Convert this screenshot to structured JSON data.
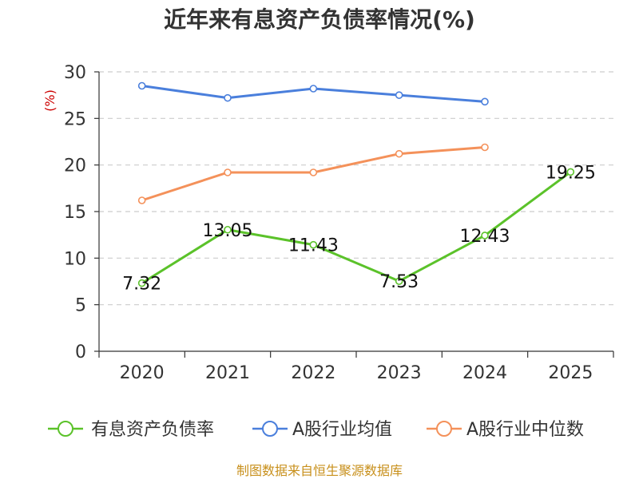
{
  "chart_data": {
    "type": "line",
    "title": "近年来有息资产负债率情况(%)",
    "ylabel": "(%)",
    "xlabel": "",
    "categories": [
      "2020",
      "2021",
      "2022",
      "2023",
      "2024",
      "2025"
    ],
    "ylim": [
      0,
      30
    ],
    "yticks": [
      0,
      5,
      10,
      15,
      20,
      25,
      30
    ],
    "grid": true,
    "legend_position": "bottom",
    "series": [
      {
        "name": "有息资产负债率",
        "color": "#5bc22a",
        "values": [
          7.32,
          13.05,
          11.43,
          7.53,
          12.43,
          19.25
        ],
        "labels": [
          "7.32",
          "13.05",
          "11.43",
          "7.53",
          "12.43",
          "19.25"
        ]
      },
      {
        "name": "A股行业均值",
        "color": "#4a7fdc",
        "values": [
          28.5,
          27.2,
          28.2,
          27.5,
          26.8,
          null
        ]
      },
      {
        "name": "A股行业中位数",
        "color": "#f4915a",
        "values": [
          16.2,
          19.2,
          19.2,
          21.2,
          21.9,
          null
        ]
      }
    ],
    "source": "制图数据来自恒生聚源数据库"
  }
}
